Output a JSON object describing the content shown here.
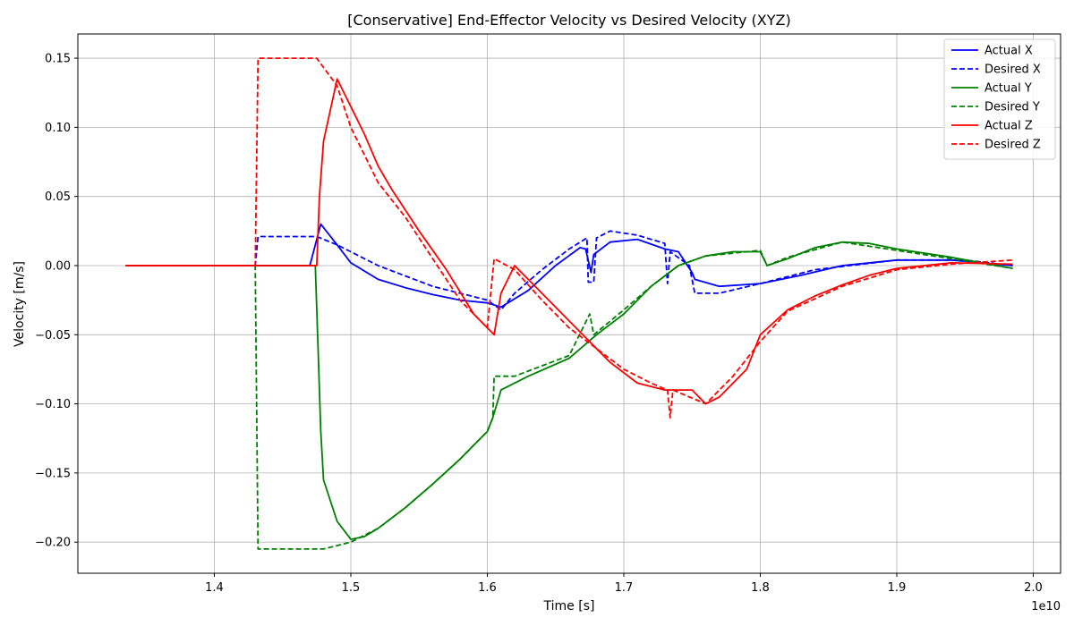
{
  "chart_data": {
    "type": "line",
    "title": "[Conservative] End-Effector Velocity vs Desired Velocity (XYZ)",
    "xlabel": "Time [s]",
    "ylabel": "Velocity [m/s]",
    "x_offset_label": "1e10",
    "xlim": [
      1.3,
      2.02
    ],
    "ylim": [
      -0.2225,
      0.1675
    ],
    "x_ticks": [
      1.4,
      1.5,
      1.6,
      1.7,
      1.8,
      1.9,
      2.0
    ],
    "x_tick_labels": [
      "1.4",
      "1.5",
      "1.6",
      "1.7",
      "1.8",
      "1.9",
      "2.0"
    ],
    "y_ticks": [
      -0.2,
      -0.15,
      -0.1,
      -0.05,
      0.0,
      0.05,
      0.1,
      0.15
    ],
    "y_tick_labels": [
      "−0.20",
      "−0.15",
      "−0.10",
      "−0.05",
      "0.00",
      "0.05",
      "0.10",
      "0.15"
    ],
    "grid": true,
    "legend_position": "top-right",
    "series": [
      {
        "name": "Actual X",
        "color": "#0000ff",
        "dash": "solid",
        "points": [
          [
            1.335,
            0.0
          ],
          [
            1.47,
            0.0
          ],
          [
            1.478,
            0.03
          ],
          [
            1.49,
            0.015
          ],
          [
            1.5,
            0.002
          ],
          [
            1.52,
            -0.01
          ],
          [
            1.54,
            -0.016
          ],
          [
            1.56,
            -0.021
          ],
          [
            1.58,
            -0.025
          ],
          [
            1.6,
            -0.027
          ],
          [
            1.61,
            -0.03
          ],
          [
            1.63,
            -0.018
          ],
          [
            1.65,
            0.0
          ],
          [
            1.668,
            0.013
          ],
          [
            1.672,
            0.012
          ],
          [
            1.676,
            -0.005
          ],
          [
            1.678,
            0.008
          ],
          [
            1.69,
            0.017
          ],
          [
            1.71,
            0.019
          ],
          [
            1.73,
            0.012
          ],
          [
            1.74,
            0.01
          ],
          [
            1.75,
            -0.005
          ],
          [
            1.752,
            -0.01
          ],
          [
            1.77,
            -0.015
          ],
          [
            1.8,
            -0.013
          ],
          [
            1.83,
            -0.007
          ],
          [
            1.86,
            0.0
          ],
          [
            1.9,
            0.004
          ],
          [
            1.94,
            0.004
          ],
          [
            1.985,
            0.0
          ]
        ]
      },
      {
        "name": "Desired X",
        "color": "#0000ff",
        "dash": "dashed",
        "points": [
          [
            1.335,
            0.0
          ],
          [
            1.43,
            0.0
          ],
          [
            1.432,
            0.021
          ],
          [
            1.475,
            0.021
          ],
          [
            1.49,
            0.015
          ],
          [
            1.52,
            0.0
          ],
          [
            1.56,
            -0.015
          ],
          [
            1.6,
            -0.025
          ],
          [
            1.61,
            -0.032
          ],
          [
            1.62,
            -0.02
          ],
          [
            1.64,
            -0.003
          ],
          [
            1.66,
            0.012
          ],
          [
            1.673,
            0.02
          ],
          [
            1.674,
            -0.012
          ],
          [
            1.678,
            -0.012
          ],
          [
            1.68,
            0.02
          ],
          [
            1.69,
            0.025
          ],
          [
            1.71,
            0.022
          ],
          [
            1.73,
            0.016
          ],
          [
            1.732,
            -0.013
          ],
          [
            1.734,
            0.01
          ],
          [
            1.748,
            0.0
          ],
          [
            1.752,
            -0.02
          ],
          [
            1.77,
            -0.02
          ],
          [
            1.8,
            -0.013
          ],
          [
            1.84,
            -0.003
          ],
          [
            1.9,
            0.004
          ],
          [
            1.95,
            0.004
          ],
          [
            1.985,
            0.0
          ]
        ]
      },
      {
        "name": "Actual Y",
        "color": "#008000",
        "dash": "solid",
        "points": [
          [
            1.335,
            0.0
          ],
          [
            1.474,
            0.0
          ],
          [
            1.476,
            -0.06
          ],
          [
            1.478,
            -0.12
          ],
          [
            1.48,
            -0.155
          ],
          [
            1.49,
            -0.185
          ],
          [
            1.5,
            -0.198
          ],
          [
            1.51,
            -0.196
          ],
          [
            1.52,
            -0.19
          ],
          [
            1.54,
            -0.175
          ],
          [
            1.56,
            -0.158
          ],
          [
            1.58,
            -0.14
          ],
          [
            1.6,
            -0.12
          ],
          [
            1.604,
            -0.11
          ],
          [
            1.61,
            -0.09
          ],
          [
            1.63,
            -0.08
          ],
          [
            1.66,
            -0.067
          ],
          [
            1.68,
            -0.05
          ],
          [
            1.7,
            -0.035
          ],
          [
            1.72,
            -0.015
          ],
          [
            1.74,
            0.0
          ],
          [
            1.76,
            0.007
          ],
          [
            1.78,
            0.01
          ],
          [
            1.8,
            0.01
          ],
          [
            1.805,
            0.0
          ],
          [
            1.82,
            0.005
          ],
          [
            1.84,
            0.013
          ],
          [
            1.86,
            0.017
          ],
          [
            1.88,
            0.016
          ],
          [
            1.9,
            0.012
          ],
          [
            1.94,
            0.006
          ],
          [
            1.985,
            -0.002
          ]
        ]
      },
      {
        "name": "Desired Y",
        "color": "#008000",
        "dash": "dashed",
        "points": [
          [
            1.335,
            0.0
          ],
          [
            1.43,
            0.0
          ],
          [
            1.432,
            -0.205
          ],
          [
            1.48,
            -0.205
          ],
          [
            1.5,
            -0.2
          ],
          [
            1.52,
            -0.19
          ],
          [
            1.54,
            -0.175
          ],
          [
            1.56,
            -0.158
          ],
          [
            1.58,
            -0.14
          ],
          [
            1.6,
            -0.12
          ],
          [
            1.604,
            -0.11
          ],
          [
            1.605,
            -0.08
          ],
          [
            1.62,
            -0.08
          ],
          [
            1.66,
            -0.065
          ],
          [
            1.675,
            -0.035
          ],
          [
            1.678,
            -0.05
          ],
          [
            1.7,
            -0.032
          ],
          [
            1.72,
            -0.015
          ],
          [
            1.74,
            0.0
          ],
          [
            1.76,
            0.007
          ],
          [
            1.8,
            0.011
          ],
          [
            1.805,
            0.0
          ],
          [
            1.82,
            0.006
          ],
          [
            1.86,
            0.017
          ],
          [
            1.9,
            0.011
          ],
          [
            1.94,
            0.005
          ],
          [
            1.985,
            -0.002
          ]
        ]
      },
      {
        "name": "Actual Z",
        "color": "#ff0000",
        "dash": "solid",
        "points": [
          [
            1.335,
            0.0
          ],
          [
            1.475,
            0.0
          ],
          [
            1.477,
            0.05
          ],
          [
            1.48,
            0.09
          ],
          [
            1.49,
            0.135
          ],
          [
            1.5,
            0.115
          ],
          [
            1.51,
            0.095
          ],
          [
            1.52,
            0.072
          ],
          [
            1.53,
            0.055
          ],
          [
            1.55,
            0.025
          ],
          [
            1.57,
            -0.003
          ],
          [
            1.59,
            -0.035
          ],
          [
            1.605,
            -0.05
          ],
          [
            1.61,
            -0.02
          ],
          [
            1.62,
            0.0
          ],
          [
            1.63,
            -0.01
          ],
          [
            1.65,
            -0.03
          ],
          [
            1.67,
            -0.05
          ],
          [
            1.69,
            -0.07
          ],
          [
            1.71,
            -0.085
          ],
          [
            1.73,
            -0.09
          ],
          [
            1.75,
            -0.09
          ],
          [
            1.76,
            -0.1
          ],
          [
            1.77,
            -0.095
          ],
          [
            1.79,
            -0.075
          ],
          [
            1.8,
            -0.05
          ],
          [
            1.82,
            -0.032
          ],
          [
            1.84,
            -0.022
          ],
          [
            1.86,
            -0.014
          ],
          [
            1.88,
            -0.007
          ],
          [
            1.9,
            -0.002
          ],
          [
            1.94,
            0.002
          ],
          [
            1.985,
            0.001
          ]
        ]
      },
      {
        "name": "Desired Z",
        "color": "#ff0000",
        "dash": "dashed",
        "points": [
          [
            1.335,
            0.0
          ],
          [
            1.43,
            0.0
          ],
          [
            1.432,
            0.15
          ],
          [
            1.475,
            0.15
          ],
          [
            1.49,
            0.13
          ],
          [
            1.5,
            0.1
          ],
          [
            1.52,
            0.06
          ],
          [
            1.54,
            0.035
          ],
          [
            1.56,
            0.005
          ],
          [
            1.58,
            -0.025
          ],
          [
            1.6,
            -0.045
          ],
          [
            1.605,
            0.005
          ],
          [
            1.62,
            -0.003
          ],
          [
            1.64,
            -0.025
          ],
          [
            1.66,
            -0.045
          ],
          [
            1.68,
            -0.06
          ],
          [
            1.7,
            -0.075
          ],
          [
            1.72,
            -0.085
          ],
          [
            1.732,
            -0.09
          ],
          [
            1.734,
            -0.11
          ],
          [
            1.736,
            -0.09
          ],
          [
            1.76,
            -0.1
          ],
          [
            1.78,
            -0.08
          ],
          [
            1.8,
            -0.055
          ],
          [
            1.82,
            -0.033
          ],
          [
            1.86,
            -0.015
          ],
          [
            1.9,
            -0.003
          ],
          [
            1.94,
            0.001
          ],
          [
            1.985,
            0.004
          ]
        ]
      }
    ]
  }
}
